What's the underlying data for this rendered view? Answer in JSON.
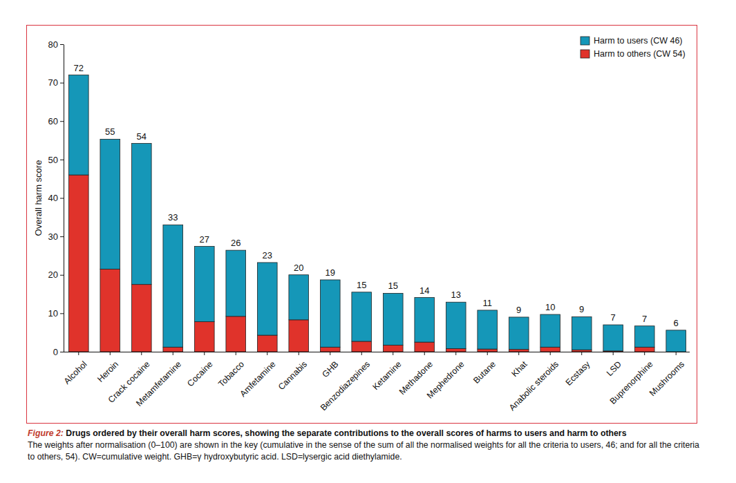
{
  "chart_data": {
    "type": "bar",
    "figure_label": "Figure 2:",
    "title": "Drugs ordered by their overall harm scores, showing the separate contributions to the overall scores of harms to users and harm to others",
    "subtitle": "The weights after normalisation (0–100) are shown in the key (cumulative in the sense of the sum of all the normalised weights for all the criteria to users, 46; and for all the criteria to others, 54). CW=cumulative weight. GHB=γ hydroxybutyric acid. LSD=lysergic acid diethylamide.",
    "y_label": "Overall harm score",
    "categories": [
      "Alcohol",
      "Heroin",
      "Crack cocaine",
      "Metamfetamine",
      "Cocaine",
      "Tobacco",
      "Amfetamine",
      "Cannabis",
      "GHB",
      "Benzodiazepines",
      "Ketamine",
      "Methadone",
      "Mephedrone",
      "Butane",
      "Khat",
      "Anabolic steroids",
      "Ecstasy",
      "LSD",
      "Buprenorphine",
      "Mushrooms"
    ],
    "series": [
      {
        "name": "Harm to users (CW 46)",
        "color": "#1597b8",
        "values": [
          26,
          33.8,
          36.7,
          31.8,
          19.6,
          17.2,
          18.9,
          11.7,
          17.5,
          12.8,
          13.5,
          11.6,
          12.1,
          10.1,
          8.4,
          8.5,
          8.6,
          6.8,
          5.5,
          5.6
        ]
      },
      {
        "name": "Harm to others (CW 54)",
        "color": "#e0332b",
        "values": [
          46,
          21.5,
          17.5,
          1.2,
          7.8,
          9.2,
          4.3,
          8.3,
          1.2,
          2.7,
          1.7,
          2.5,
          0.8,
          0.7,
          0.6,
          1.2,
          0.5,
          0.2,
          1.2,
          0
        ]
      }
    ],
    "totals": [
      72,
      55,
      54,
      33,
      27,
      26,
      23,
      20,
      19,
      15,
      15,
      14,
      13,
      11,
      9,
      10,
      9,
      7,
      7,
      6
    ],
    "stacked": true,
    "grid": false,
    "legend": "top-right",
    "ylim": [
      0,
      80
    ],
    "yticks": [
      0,
      10,
      20,
      30,
      40,
      50,
      60,
      70,
      80
    ]
  }
}
